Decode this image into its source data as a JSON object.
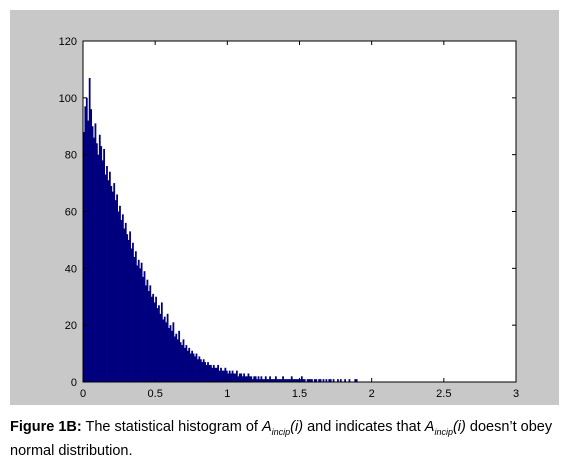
{
  "chart_data": {
    "type": "bar",
    "title": "",
    "xlabel": "",
    "ylabel": "",
    "xlim": [
      0,
      3
    ],
    "ylim": [
      0,
      120
    ],
    "xticks": [
      "0",
      "0.5",
      "1",
      "1.5",
      "2",
      "2.5",
      "3"
    ],
    "yticks": [
      "0",
      "20",
      "40",
      "60",
      "80",
      "100",
      "120"
    ],
    "bar_color": "#00007f",
    "grid": false,
    "bin_width": 0.01,
    "bin_centers": [
      0.005,
      0.015,
      0.025,
      0.035,
      0.045,
      0.055,
      0.065,
      0.075,
      0.085,
      0.095,
      0.105,
      0.115,
      0.125,
      0.135,
      0.145,
      0.155,
      0.165,
      0.175,
      0.185,
      0.195,
      0.205,
      0.215,
      0.225,
      0.235,
      0.245,
      0.255,
      0.265,
      0.275,
      0.285,
      0.295,
      0.305,
      0.315,
      0.325,
      0.335,
      0.345,
      0.355,
      0.365,
      0.375,
      0.385,
      0.395,
      0.405,
      0.415,
      0.425,
      0.435,
      0.445,
      0.455,
      0.465,
      0.475,
      0.485,
      0.495,
      0.505,
      0.515,
      0.525,
      0.535,
      0.545,
      0.555,
      0.565,
      0.575,
      0.585,
      0.595,
      0.605,
      0.615,
      0.625,
      0.635,
      0.645,
      0.655,
      0.665,
      0.675,
      0.685,
      0.695,
      0.705,
      0.715,
      0.725,
      0.735,
      0.745,
      0.755,
      0.765,
      0.775,
      0.785,
      0.795,
      0.805,
      0.815,
      0.825,
      0.835,
      0.845,
      0.855,
      0.865,
      0.875,
      0.885,
      0.895,
      0.905,
      0.915,
      0.925,
      0.935,
      0.945,
      0.955,
      0.965,
      0.975,
      0.985,
      0.995,
      1.005,
      1.015,
      1.025,
      1.035,
      1.045,
      1.055,
      1.065,
      1.075,
      1.085,
      1.095,
      1.105,
      1.115,
      1.125,
      1.135,
      1.145,
      1.155,
      1.165,
      1.175,
      1.185,
      1.195,
      1.205,
      1.215,
      1.225,
      1.235,
      1.245,
      1.255,
      1.265,
      1.275,
      1.285,
      1.295,
      1.305,
      1.315,
      1.325,
      1.335,
      1.345,
      1.355,
      1.365,
      1.375,
      1.385,
      1.395,
      1.405,
      1.415,
      1.425,
      1.435,
      1.445,
      1.455,
      1.465,
      1.475,
      1.485,
      1.495,
      1.505,
      1.515,
      1.525,
      1.535,
      1.545,
      1.555,
      1.565,
      1.575,
      1.585,
      1.595,
      1.605,
      1.615,
      1.625,
      1.635,
      1.645,
      1.655,
      1.665,
      1.675,
      1.685,
      1.695,
      1.705,
      1.715,
      1.725,
      1.735,
      1.745,
      1.755,
      1.765,
      1.775,
      1.785,
      1.795,
      1.805,
      1.815,
      1.825,
      1.835,
      1.845,
      1.855,
      1.865,
      1.875,
      1.885,
      1.895
    ],
    "counts": [
      88,
      97,
      100,
      92,
      107,
      96,
      90,
      86,
      91,
      84,
      80,
      87,
      83,
      78,
      82,
      73,
      76,
      71,
      74,
      69,
      67,
      70,
      64,
      66,
      60,
      62,
      57,
      59,
      54,
      56,
      52,
      50,
      53,
      47,
      49,
      44,
      46,
      41,
      43,
      40,
      42,
      37,
      39,
      34,
      36,
      32,
      34,
      30,
      31,
      28,
      30,
      26,
      27,
      24,
      28,
      22,
      23,
      21,
      24,
      19,
      20,
      18,
      21,
      16,
      17,
      15,
      18,
      14,
      13,
      15,
      12,
      13,
      11,
      12,
      10,
      11,
      10,
      9,
      10,
      8,
      9,
      8,
      7,
      8,
      7,
      6,
      7,
      6,
      6,
      5,
      6,
      5,
      5,
      6,
      4,
      5,
      4,
      4,
      5,
      4,
      3,
      4,
      3,
      4,
      3,
      3,
      4,
      2,
      3,
      3,
      2,
      3,
      2,
      2,
      3,
      2,
      2,
      1,
      2,
      2,
      1,
      2,
      1,
      2,
      1,
      1,
      2,
      1,
      1,
      2,
      1,
      1,
      1,
      2,
      1,
      1,
      1,
      1,
      2,
      1,
      1,
      1,
      1,
      1,
      2,
      1,
      1,
      1,
      1,
      1,
      1,
      2,
      1,
      1,
      0,
      1,
      1,
      1,
      1,
      0,
      1,
      1,
      0,
      1,
      1,
      0,
      1,
      0,
      1,
      0,
      1,
      1,
      0,
      1,
      0,
      0,
      1,
      0,
      1,
      0,
      0,
      1,
      0,
      0,
      1,
      0,
      0,
      0,
      1,
      1
    ]
  },
  "caption": {
    "label": "Figure 1B:",
    "text_1": " The statistical histogram of ",
    "symbol": "A",
    "subscript": "incip",
    "arg": "(i)",
    "text_2": " and indicates that ",
    "symbol_2": "A",
    "subscript_2": "incip",
    "arg_2": "(i)",
    "text_3": " doesn’t obey normal distribution."
  }
}
